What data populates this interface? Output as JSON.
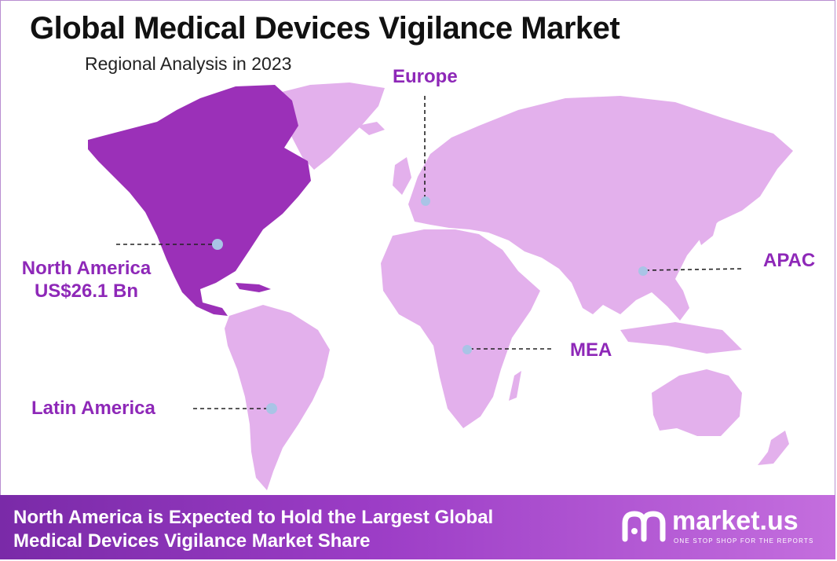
{
  "title": "Global Medical Devices Vigilance Market",
  "subtitle": "Regional Analysis in 2023",
  "regions": [
    {
      "name": "North America",
      "value_label": "US$26.1 Bn",
      "highlighted": true
    },
    {
      "name": "Europe",
      "highlighted": false
    },
    {
      "name": "APAC",
      "highlighted": false
    },
    {
      "name": "MEA",
      "highlighted": false
    },
    {
      "name": "Latin America",
      "highlighted": false
    }
  ],
  "footer": {
    "line1": "North America is Expected to Hold the Largest Global",
    "line2": "Medical Devices Vigilance Market Share"
  },
  "brand": {
    "name": "market.us",
    "tagline": "ONE STOP SHOP FOR THE REPORTS",
    "logo_icon": "market-us-logo-icon"
  },
  "colors": {
    "highlight_region": "#9b30b8",
    "other_regions": "#e3b0ec",
    "label_text": "#8e28b8",
    "marker_dot": "#a9c4e6",
    "footer_start": "#7a2aa8",
    "footer_end": "#c46ede"
  }
}
